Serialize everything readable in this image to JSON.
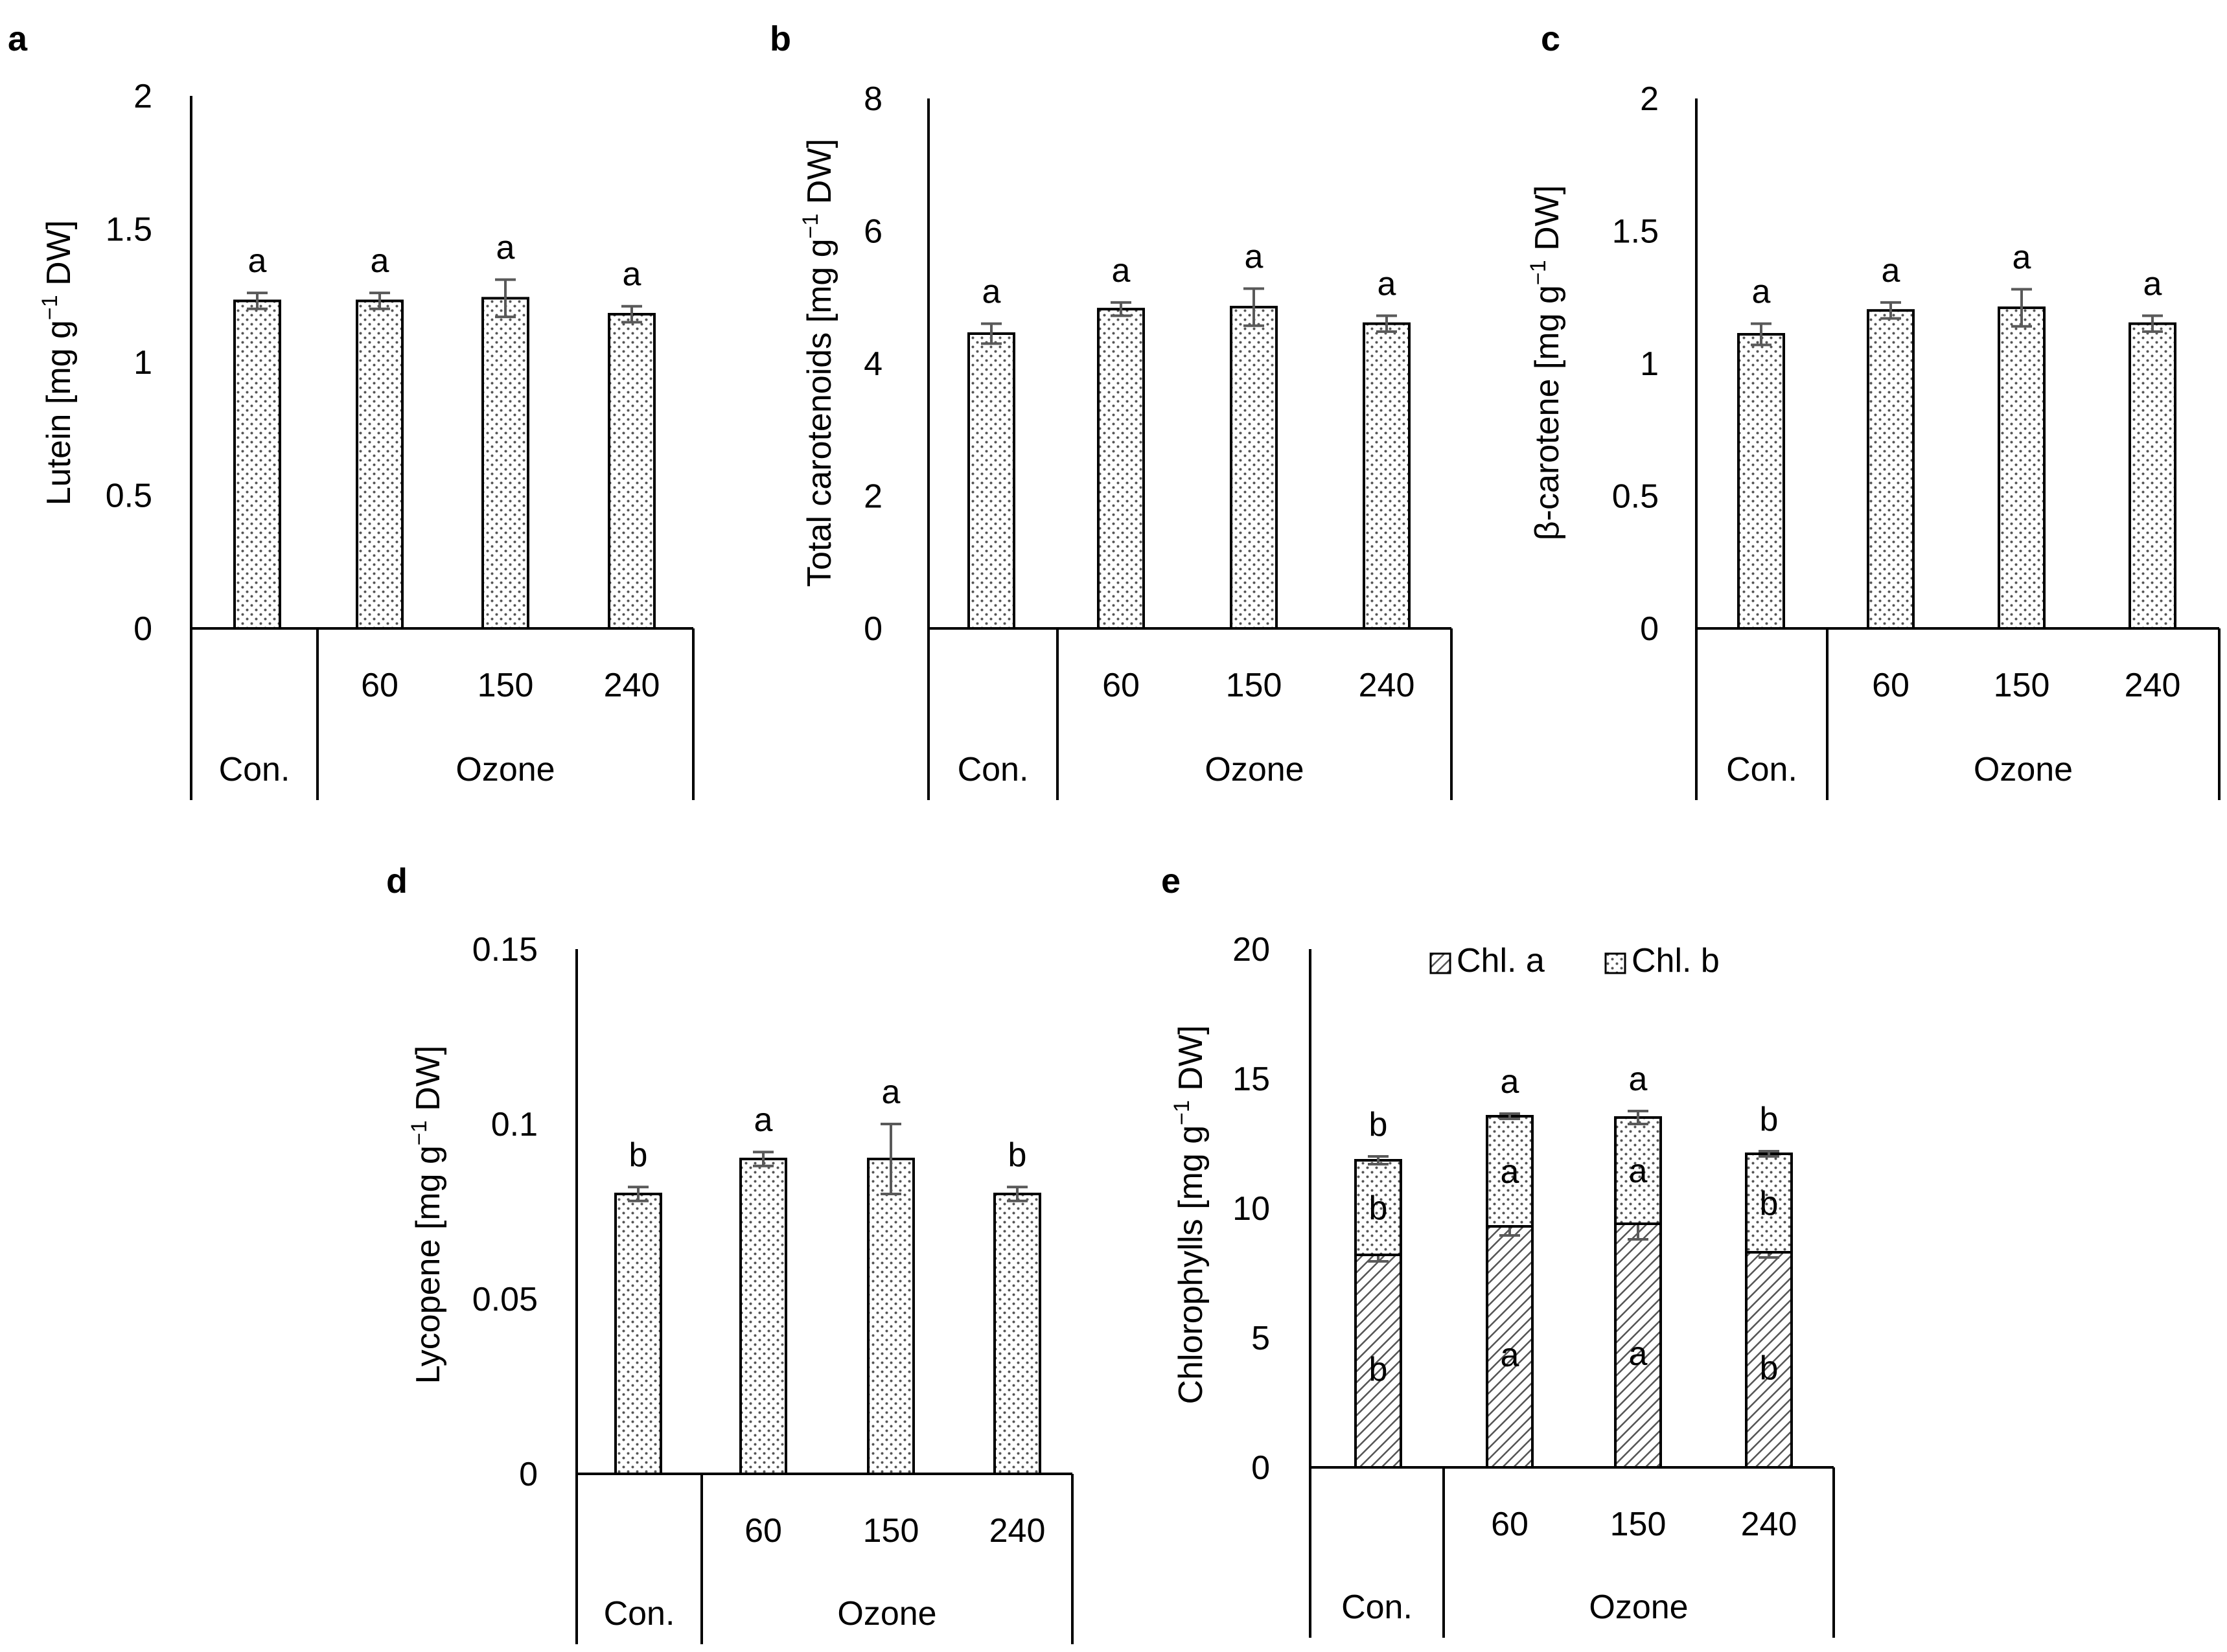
{
  "chart_data": [
    {
      "panel": "a",
      "type": "bar",
      "ylabel_main": "Lutein [mg g",
      "ylabel_sup": "−1",
      "ylabel_tail": " DW]",
      "yticks": [
        "0",
        "0.5",
        "1",
        "1.5",
        "2"
      ],
      "ylim": [
        0,
        2
      ],
      "categories": [
        "",
        "60",
        "150",
        "240"
      ],
      "groups": [
        {
          "label": "Con.",
          "span": 1
        },
        {
          "label": "Ozone",
          "span": 3
        }
      ],
      "series": [
        {
          "name": "Lutein",
          "values": [
            1.23,
            1.23,
            1.24,
            1.18
          ],
          "errors": [
            0.03,
            0.03,
            0.07,
            0.03
          ],
          "letters": [
            "a",
            "a",
            "a",
            "a"
          ],
          "pattern": "dots"
        }
      ]
    },
    {
      "panel": "b",
      "type": "bar",
      "ylabel_main": "Total carotenoids [mg g",
      "ylabel_sup": "−1",
      "ylabel_tail": " DW]",
      "yticks": [
        "0",
        "2",
        "4",
        "6",
        "8"
      ],
      "ylim": [
        0,
        8
      ],
      "categories": [
        "",
        "60",
        "150",
        "240"
      ],
      "groups": [
        {
          "label": "Con.",
          "span": 1
        },
        {
          "label": "Ozone",
          "span": 3
        }
      ],
      "series": [
        {
          "name": "Total carotenoids",
          "values": [
            4.45,
            4.82,
            4.85,
            4.6
          ],
          "errors": [
            0.15,
            0.1,
            0.28,
            0.12
          ],
          "letters": [
            "a",
            "a",
            "a",
            "a"
          ],
          "pattern": "dots"
        }
      ]
    },
    {
      "panel": "c",
      "type": "bar",
      "ylabel_main": "β-carotene [mg g",
      "ylabel_sup": "−1",
      "ylabel_tail": " DW]",
      "yticks": [
        "0",
        "0.5",
        "1",
        "1.5",
        "2"
      ],
      "ylim": [
        0,
        2
      ],
      "categories": [
        "",
        "60",
        "150",
        "240"
      ],
      "groups": [
        {
          "label": "Con.",
          "span": 1
        },
        {
          "label": "Ozone",
          "span": 3
        }
      ],
      "series": [
        {
          "name": "β-carotene",
          "values": [
            1.11,
            1.2,
            1.21,
            1.15
          ],
          "errors": [
            0.04,
            0.03,
            0.07,
            0.03
          ],
          "letters": [
            "a",
            "a",
            "a",
            "a"
          ],
          "pattern": "dots"
        }
      ]
    },
    {
      "panel": "d",
      "type": "bar",
      "ylabel_main": "Lycopene [mg g",
      "ylabel_sup": "−1",
      "ylabel_tail": " DW]",
      "yticks": [
        "0",
        "0.05",
        "0.1",
        "0.15"
      ],
      "ylim": [
        0,
        0.15
      ],
      "categories": [
        "",
        "60",
        "150",
        "240"
      ],
      "groups": [
        {
          "label": "Con.",
          "span": 1
        },
        {
          "label": "Ozone",
          "span": 3
        }
      ],
      "series": [
        {
          "name": "Lycopene",
          "values": [
            0.08,
            0.09,
            0.09,
            0.08
          ],
          "errors": [
            0.002,
            0.002,
            0.01,
            0.002
          ],
          "letters": [
            "b",
            "a",
            "a",
            "b"
          ],
          "pattern": "dots"
        }
      ]
    },
    {
      "panel": "e",
      "type": "stacked-bar",
      "ylabel_main": "Chlorophylls [mg g",
      "ylabel_sup": "−1",
      "ylabel_tail": " DW]",
      "yticks": [
        "0",
        "5",
        "10",
        "15",
        "20"
      ],
      "ylim": [
        0,
        20
      ],
      "categories": [
        "",
        "60",
        "150",
        "240"
      ],
      "groups": [
        {
          "label": "Con.",
          "span": 1
        },
        {
          "label": "Ozone",
          "span": 3
        }
      ],
      "legend": [
        "Chl. a",
        "Chl. b"
      ],
      "series": [
        {
          "name": "Chl. a",
          "values": [
            8.2,
            9.3,
            9.4,
            8.3
          ],
          "errors": [
            0.25,
            0.35,
            0.6,
            0.2
          ],
          "letters": [
            "b",
            "a",
            "a",
            "b"
          ],
          "pattern": "hatch"
        },
        {
          "name": "Chl. b",
          "values": [
            3.65,
            4.25,
            4.1,
            3.8
          ],
          "errors": [
            0.15,
            0.1,
            0.25,
            0.1
          ],
          "letters": [
            "b",
            "a",
            "a",
            "b"
          ],
          "pattern": "dots"
        }
      ],
      "total_letters": [
        "b",
        "a",
        "a",
        "b"
      ]
    }
  ]
}
